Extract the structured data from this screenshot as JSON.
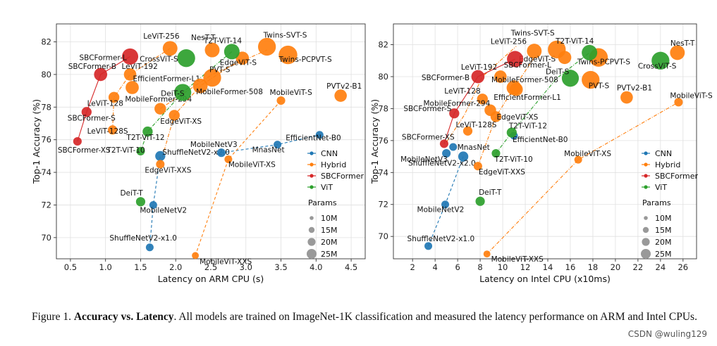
{
  "caption": {
    "prefix": "Figure 1. ",
    "bold": "Accuracy vs. Latency",
    "rest": ". All models are trained on ImageNet-1K classification and measured the latency performance on ARM and Intel CPUs."
  },
  "watermark": "CSDN @wuling129",
  "colors": {
    "CNN": "#1f77b4",
    "Hybrid": "#ff7f0e",
    "SBCFormer": "#d62728",
    "ViT": "#2ca02c"
  },
  "chart_data": [
    {
      "type": "scatter",
      "xlabel": "Latency on ARM CPU (s)",
      "ylabel": "Top-1 Accuracy (%)",
      "xlim": [
        0.3,
        4.7
      ],
      "ylim": [
        68.7,
        83.1
      ],
      "xticks": [
        "0.5",
        "1.0",
        "1.5",
        "2.0",
        "2.5",
        "3.0",
        "3.5",
        "4.0",
        "4.5"
      ],
      "xtick_values": [
        0.5,
        1.0,
        1.5,
        2.0,
        2.5,
        3.0,
        3.5,
        4.0,
        4.5
      ],
      "yticks": [
        "70",
        "72",
        "74",
        "76",
        "78",
        "80",
        "82"
      ],
      "ytick_values": [
        70,
        72,
        74,
        76,
        78,
        80,
        82
      ],
      "legend": {
        "entries": [
          "CNN",
          "Hybrid",
          "SBCFormer",
          "ViT"
        ],
        "params_title": "Params",
        "params": [
          "10M",
          "15M",
          "20M",
          "25M"
        ],
        "placement": "bottom-right"
      },
      "lines": [
        {
          "family": "CNN",
          "style": "dashed",
          "points": [
            [
              1.63,
              69.4
            ],
            [
              1.68,
              72.0
            ],
            [
              1.78,
              75.0
            ]
          ]
        },
        {
          "family": "CNN",
          "style": "dashed",
          "points": [
            [
              2.65,
              75.2
            ],
            [
              3.45,
              75.7
            ],
            [
              4.05,
              76.3
            ]
          ]
        },
        {
          "family": "Hybrid",
          "style": "dashdot",
          "points": [
            [
              1.1,
              76.6
            ],
            [
              1.12,
              78.6
            ],
            [
              1.35,
              80.0
            ],
            [
              1.92,
              81.6
            ]
          ]
        },
        {
          "family": "Hybrid",
          "style": "dashdot",
          "points": [
            [
              1.78,
              74.5
            ],
            [
              1.98,
              77.5
            ],
            [
              2.35,
              79.3
            ],
            [
              2.95,
              81.0
            ]
          ]
        },
        {
          "family": "Hybrid",
          "style": "dashed",
          "points": [
            [
              2.28,
              68.9
            ],
            [
              2.75,
              74.8
            ],
            [
              3.5,
              78.4
            ]
          ]
        },
        {
          "family": "Hybrid",
          "style": "dashdot",
          "points": [
            [
              1.78,
              77.9
            ],
            [
              2.52,
              80.0
            ],
            [
              3.3,
              81.5
            ]
          ]
        },
        {
          "family": "SBCFormer",
          "style": "solid",
          "points": [
            [
              0.6,
              75.9
            ],
            [
              0.73,
              77.7
            ],
            [
              0.93,
              80.0
            ],
            [
              1.35,
              81.1
            ]
          ]
        },
        {
          "family": "ViT",
          "style": "dashdot",
          "points": [
            [
              1.5,
              75.3
            ],
            [
              1.6,
              76.5
            ],
            [
              2.1,
              78.9
            ],
            [
              2.8,
              81.4
            ]
          ]
        }
      ],
      "points": [
        {
          "label": "ShuffleNetV2-x1.0",
          "family": "CNN",
          "x": 1.63,
          "y": 69.4,
          "size": 10
        },
        {
          "label": "MobileNetV2",
          "family": "CNN",
          "x": 1.68,
          "y": 72.0,
          "size": 10
        },
        {
          "label": "ShuffleNetV2-x2.0",
          "family": "CNN",
          "x": 1.78,
          "y": 75.0,
          "size": 13
        },
        {
          "label": "MobileNetV3",
          "family": "CNN",
          "x": 2.65,
          "y": 75.2,
          "size": 11
        },
        {
          "label": "MnasNet",
          "family": "CNN",
          "x": 3.45,
          "y": 75.7,
          "size": 10
        },
        {
          "label": "EfficientNet-B0",
          "family": "CNN",
          "x": 4.05,
          "y": 76.3,
          "size": 10
        },
        {
          "label": "LeViT-128S",
          "family": "Hybrid",
          "x": 1.1,
          "y": 76.6,
          "size": 12
        },
        {
          "label": "LeViT-128",
          "family": "Hybrid",
          "x": 1.12,
          "y": 78.6,
          "size": 14
        },
        {
          "label": "LeViT-192",
          "family": "Hybrid",
          "x": 1.35,
          "y": 80.0,
          "size": 16
        },
        {
          "label": "LeViT-256",
          "family": "Hybrid",
          "x": 1.92,
          "y": 81.6,
          "size": 19
        },
        {
          "label": "EfficientFormer-L1",
          "family": "Hybrid",
          "x": 1.38,
          "y": 79.2,
          "size": 17
        },
        {
          "label": "MobileFormer-294",
          "family": "Hybrid",
          "x": 1.78,
          "y": 77.9,
          "size": 15
        },
        {
          "label": "MobileFormer-508",
          "family": "Hybrid",
          "x": 2.35,
          "y": 79.3,
          "size": 19
        },
        {
          "label": "EdgeViT-XXS",
          "family": "Hybrid",
          "x": 1.78,
          "y": 74.5,
          "size": 11
        },
        {
          "label": "EdgeViT-XS",
          "family": "Hybrid",
          "x": 1.98,
          "y": 77.5,
          "size": 14
        },
        {
          "label": "EdgeViT-S",
          "family": "Hybrid",
          "x": 2.95,
          "y": 81.0,
          "size": 17
        },
        {
          "label": "MobileViT-XXS",
          "family": "Hybrid",
          "x": 2.28,
          "y": 68.9,
          "size": 9
        },
        {
          "label": "MobileViT-XS",
          "family": "Hybrid",
          "x": 2.75,
          "y": 74.8,
          "size": 10
        },
        {
          "label": "MobileViT-S",
          "family": "Hybrid",
          "x": 3.5,
          "y": 78.4,
          "size": 11
        },
        {
          "label": "PVT-S",
          "family": "Hybrid",
          "x": 2.52,
          "y": 79.8,
          "size": 23
        },
        {
          "label": "PVTv2-B1",
          "family": "Hybrid",
          "x": 4.35,
          "y": 78.7,
          "size": 16
        },
        {
          "label": "NesT-T",
          "family": "Hybrid",
          "x": 2.52,
          "y": 81.5,
          "size": 19
        },
        {
          "label": "Twins-SVT-S",
          "family": "Hybrid",
          "x": 3.3,
          "y": 81.7,
          "size": 23
        },
        {
          "label": "Twins-PCPVT-S",
          "family": "Hybrid",
          "x": 3.6,
          "y": 81.2,
          "size": 24
        },
        {
          "label": "SBCFormer-XS",
          "family": "SBCFormer",
          "x": 0.6,
          "y": 75.9,
          "size": 11
        },
        {
          "label": "SBCFormer-S",
          "family": "SBCFormer",
          "x": 0.73,
          "y": 77.7,
          "size": 13
        },
        {
          "label": "SBCFormer-B",
          "family": "SBCFormer",
          "x": 0.93,
          "y": 80.0,
          "size": 17
        },
        {
          "label": "SBCFormer-L",
          "family": "SBCFormer",
          "x": 1.35,
          "y": 81.1,
          "size": 21
        },
        {
          "label": "T2T-ViT-10",
          "family": "ViT",
          "x": 1.5,
          "y": 75.3,
          "size": 11
        },
        {
          "label": "T2T-ViT-12",
          "family": "ViT",
          "x": 1.6,
          "y": 76.5,
          "size": 13
        },
        {
          "label": "T2T-ViT-14",
          "family": "ViT",
          "x": 2.8,
          "y": 81.4,
          "size": 20
        },
        {
          "label": "DeiT-T",
          "family": "ViT",
          "x": 1.5,
          "y": 72.2,
          "size": 12
        },
        {
          "label": "DeiT-S",
          "family": "ViT",
          "x": 2.1,
          "y": 78.9,
          "size": 22
        },
        {
          "label": "CrossViT-S",
          "family": "ViT",
          "x": 2.15,
          "y": 81.0,
          "size": 23
        }
      ]
    },
    {
      "type": "scatter",
      "xlabel": "Latency on Intel CPU (x10ms)",
      "ylabel": "",
      "xlim": [
        0.3,
        27.2
      ],
      "ylim": [
        68.6,
        83.3
      ],
      "xticks": [
        "2",
        "4",
        "6",
        "8",
        "10",
        "12",
        "14",
        "16",
        "18",
        "20",
        "22",
        "24",
        "26"
      ],
      "xtick_values": [
        2,
        4,
        6,
        8,
        10,
        12,
        14,
        16,
        18,
        20,
        22,
        24,
        26
      ],
      "yticks": [
        "70",
        "72",
        "74",
        "76",
        "78",
        "80",
        "82"
      ],
      "ytick_values": [
        70,
        72,
        74,
        76,
        78,
        80,
        82
      ],
      "legend": {
        "entries": [
          "CNN",
          "Hybrid",
          "SBCFormer",
          "ViT"
        ],
        "params_title": "Params",
        "params": [
          "10M",
          "15M",
          "20M",
          "25M"
        ],
        "placement": "bottom-right"
      },
      "lines": [
        {
          "family": "CNN",
          "style": "dashed",
          "points": [
            [
              3.4,
              69.4
            ],
            [
              4.9,
              72.0
            ],
            [
              6.5,
              75.0
            ]
          ]
        },
        {
          "family": "Hybrid",
          "style": "dashdot",
          "points": [
            [
              5.0,
              75.9
            ],
            [
              6.6,
              77.6
            ],
            [
              8.2,
              80.0
            ],
            [
              11.2,
              81.9
            ]
          ]
        },
        {
          "family": "Hybrid",
          "style": "dashdot",
          "points": [
            [
              7.8,
              74.4
            ],
            [
              9.4,
              77.5
            ],
            [
              11.0,
              79.3
            ],
            [
              12.8,
              81.2
            ]
          ]
        },
        {
          "family": "Hybrid",
          "style": "dashdot",
          "points": [
            [
              8.6,
              68.9
            ],
            [
              16.7,
              74.8
            ],
            [
              25.6,
              78.4
            ]
          ]
        },
        {
          "family": "SBCFormer",
          "style": "solid",
          "points": [
            [
              4.8,
              75.8
            ],
            [
              5.7,
              77.7
            ],
            [
              7.8,
              80.0
            ],
            [
              11.1,
              81.1
            ]
          ]
        },
        {
          "family": "ViT",
          "style": "dashdot",
          "points": [
            [
              9.4,
              75.2
            ],
            [
              10.8,
              76.5
            ],
            [
              14.8,
              79.9
            ],
            [
              17.7,
              81.5
            ]
          ]
        }
      ],
      "points": [
        {
          "label": "ShuffleNetV2-x1.0",
          "family": "CNN",
          "x": 3.4,
          "y": 69.4,
          "size": 10
        },
        {
          "label": "MobileNetV2",
          "family": "CNN",
          "x": 4.9,
          "y": 72.0,
          "size": 10
        },
        {
          "label": "ShuffleNetV2-x2.0",
          "family": "CNN",
          "x": 6.5,
          "y": 75.0,
          "size": 13
        },
        {
          "label": "MobileNetV3",
          "family": "CNN",
          "x": 5.0,
          "y": 75.2,
          "size": 11
        },
        {
          "label": "MnasNet",
          "family": "CNN",
          "x": 5.6,
          "y": 75.6,
          "size": 10
        },
        {
          "label": "EfficientNet-B0",
          "family": "CNN",
          "x": 11.0,
          "y": 76.3,
          "size": 10
        },
        {
          "label": "LeViT-128S",
          "family": "Hybrid",
          "x": 6.9,
          "y": 76.6,
          "size": 12
        },
        {
          "label": "LeViT-128",
          "family": "Hybrid",
          "x": 8.2,
          "y": 78.6,
          "size": 14
        },
        {
          "label": "LeViT-192",
          "family": "Hybrid",
          "x": 9.8,
          "y": 80.0,
          "size": 16
        },
        {
          "label": "LeViT-256",
          "family": "Hybrid",
          "x": 12.8,
          "y": 81.6,
          "size": 19
        },
        {
          "label": "EfficientFormer-L1",
          "family": "Hybrid",
          "x": 11.2,
          "y": 79.2,
          "size": 17
        },
        {
          "label": "MobileFormer-294",
          "family": "Hybrid",
          "x": 8.9,
          "y": 77.9,
          "size": 15
        },
        {
          "label": "MobileFormer-508",
          "family": "Hybrid",
          "x": 11.0,
          "y": 79.3,
          "size": 19
        },
        {
          "label": "EdgeViT-XXS",
          "family": "Hybrid",
          "x": 7.8,
          "y": 74.4,
          "size": 11
        },
        {
          "label": "EdgeViT-XS",
          "family": "Hybrid",
          "x": 9.4,
          "y": 77.5,
          "size": 14
        },
        {
          "label": "EdgeViT-S",
          "family": "Hybrid",
          "x": 15.5,
          "y": 81.2,
          "size": 17
        },
        {
          "label": "MobileViT-XXS",
          "family": "Hybrid",
          "x": 8.6,
          "y": 68.9,
          "size": 9
        },
        {
          "label": "MobileViT-XS",
          "family": "Hybrid",
          "x": 16.7,
          "y": 74.8,
          "size": 10
        },
        {
          "label": "MobileViT-S",
          "family": "Hybrid",
          "x": 25.6,
          "y": 78.4,
          "size": 11
        },
        {
          "label": "PVT-S",
          "family": "Hybrid",
          "x": 17.8,
          "y": 79.8,
          "size": 23
        },
        {
          "label": "PVTv2-B1",
          "family": "Hybrid",
          "x": 21.0,
          "y": 78.7,
          "size": 16
        },
        {
          "label": "NesT-T",
          "family": "Hybrid",
          "x": 25.5,
          "y": 81.5,
          "size": 19
        },
        {
          "label": "Twins-SVT-S",
          "family": "Hybrid",
          "x": 14.8,
          "y": 81.7,
          "size": 23
        },
        {
          "label": "Twins-PCPVT-S",
          "family": "Hybrid",
          "x": 18.5,
          "y": 81.2,
          "size": 24
        },
        {
          "label": "SBCFormer-XS",
          "family": "SBCFormer",
          "x": 4.8,
          "y": 75.8,
          "size": 11
        },
        {
          "label": "SBCFormer-S",
          "family": "SBCFormer",
          "x": 5.7,
          "y": 77.7,
          "size": 13
        },
        {
          "label": "SBCFormer-B",
          "family": "SBCFormer",
          "x": 7.8,
          "y": 80.0,
          "size": 17
        },
        {
          "label": "SBCFormer-L",
          "family": "SBCFormer",
          "x": 11.1,
          "y": 81.1,
          "size": 21
        },
        {
          "label": "T2T-ViT-10",
          "family": "ViT",
          "x": 9.4,
          "y": 75.2,
          "size": 11
        },
        {
          "label": "T2T-ViT-12",
          "family": "ViT",
          "x": 10.8,
          "y": 76.5,
          "size": 13
        },
        {
          "label": "T2T-ViT-14",
          "family": "ViT",
          "x": 17.7,
          "y": 81.5,
          "size": 20
        },
        {
          "label": "DeiT-T",
          "family": "ViT",
          "x": 8.0,
          "y": 72.2,
          "size": 12
        },
        {
          "label": "DeiT-S",
          "family": "ViT",
          "x": 16.0,
          "y": 79.9,
          "size": 22
        },
        {
          "label": "CrossViT-S",
          "family": "ViT",
          "x": 24.0,
          "y": 81.0,
          "size": 23
        }
      ]
    }
  ]
}
